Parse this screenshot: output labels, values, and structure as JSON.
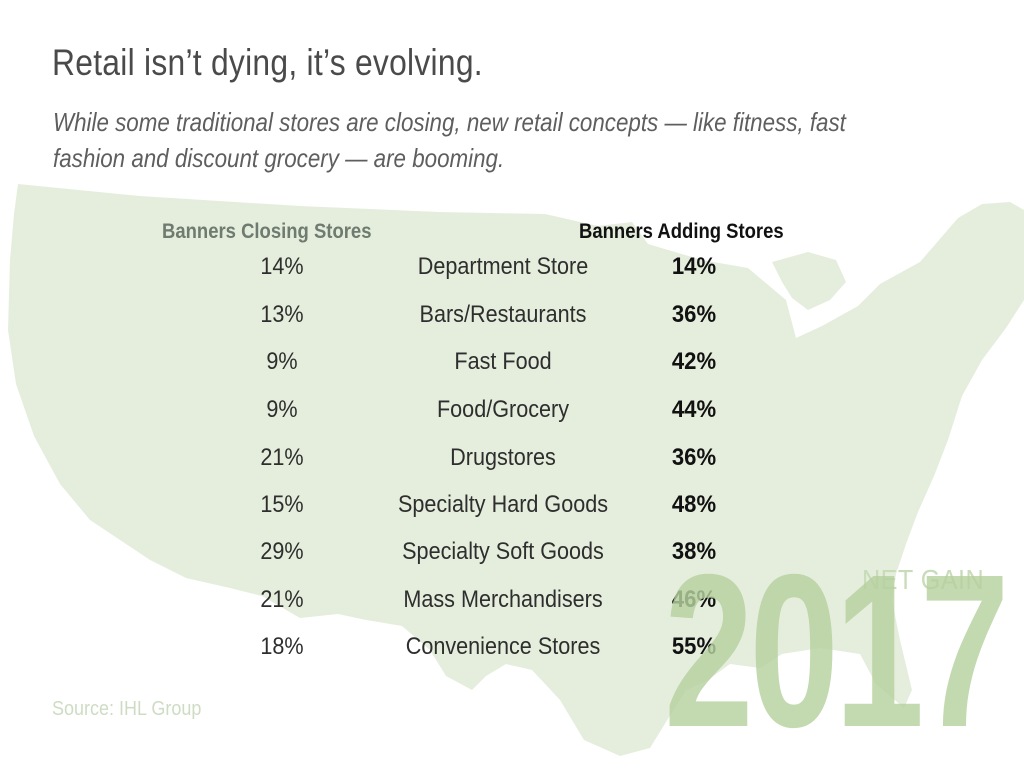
{
  "header": {
    "title": "Retail isn’t dying, it’s evolving.",
    "subtitle": "While some traditional stores are closing, new retail concepts — like fitness, fast fashion and discount grocery — are booming."
  },
  "colors": {
    "map": "#e5eedd",
    "watermark": "#b6d19f",
    "closing_header": "#6f7a70",
    "adding_header": "#111111"
  },
  "chart_data": {
    "type": "table",
    "columns": [
      "Banners Closing Stores",
      "",
      "Banners Adding Stores"
    ],
    "rows": [
      {
        "closing": "14%",
        "category": "Department Store",
        "adding": "14%"
      },
      {
        "closing": "13%",
        "category": "Bars/Restaurants",
        "adding": "36%"
      },
      {
        "closing": "9%",
        "category": "Fast Food",
        "adding": "42%"
      },
      {
        "closing": "9%",
        "category": "Food/Grocery",
        "adding": "44%"
      },
      {
        "closing": "21%",
        "category": "Drugstores",
        "adding": "36%"
      },
      {
        "closing": "15%",
        "category": "Specialty Hard Goods",
        "adding": "48%"
      },
      {
        "closing": "29%",
        "category": "Specialty Soft Goods",
        "adding": "38%"
      },
      {
        "closing": "21%",
        "category": "Mass Merchandisers",
        "adding": "46%"
      },
      {
        "closing": "18%",
        "category": "Convenience Stores",
        "adding": "55%"
      }
    ]
  },
  "footer": {
    "source": "Source: IHL Group",
    "net_gain_label": "NET GAIN",
    "year": "2017"
  }
}
